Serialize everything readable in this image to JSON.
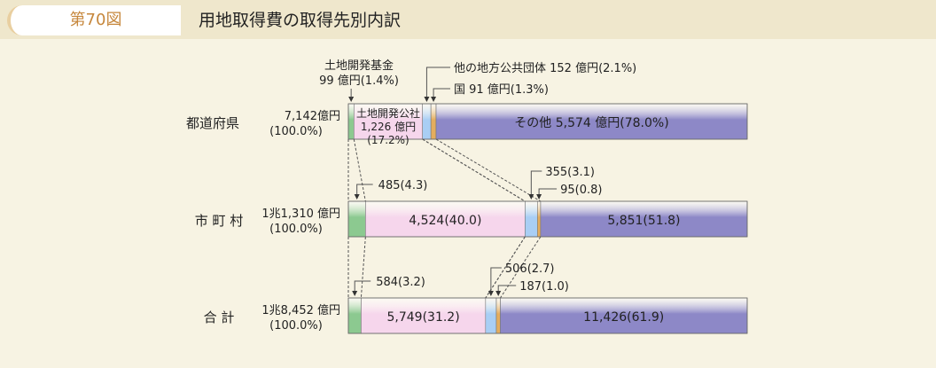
{
  "header": {
    "figure_number": "第70図",
    "title": "用地取得費の取得先別内訳"
  },
  "chart_data": {
    "type": "bar",
    "orientation": "horizontal",
    "stacked": true,
    "normalized_percent": true,
    "title": "用地取得費の取得先別内訳",
    "segment_colors": {
      "land_fund": "#8cc990",
      "land_corp": "#f6d6ec",
      "local_gov": "#a9cef4",
      "national": "#e4ad5e",
      "other": "#8d88c7"
    },
    "rows": [
      {
        "name": "都道府県",
        "total": "7,142億円",
        "total_pct": "(100.0%)",
        "shares": [
          1.4,
          17.2,
          2.1,
          1.3,
          78.0
        ],
        "labels": {
          "land_fund": [
            "土地開発基金",
            "99 億円(1.4%)"
          ],
          "land_corp": [
            "土地開発公社",
            "1,226 億円",
            "(17.2%)"
          ],
          "local_gov": "他の地方公共団体 152 億円(2.1%)",
          "national": "国 91 億円(1.3%)",
          "other": "その他 5,574 億円(78.0%)"
        }
      },
      {
        "name": "市 町 村",
        "total": "1兆1,310 億円",
        "total_pct": "(100.0%)",
        "shares": [
          4.3,
          40.0,
          3.1,
          0.8,
          51.8
        ],
        "labels": {
          "land_fund": "485(4.3)",
          "land_corp": "4,524(40.0)",
          "local_gov": "355(3.1)",
          "national": "95(0.8)",
          "other": "5,851(51.8)"
        }
      },
      {
        "name": "合 計",
        "total": "1兆8,452 億円",
        "total_pct": "(100.0%)",
        "shares": [
          3.2,
          31.2,
          2.7,
          1.0,
          61.9
        ],
        "labels": {
          "land_fund": "584(3.2)",
          "land_corp": "5,749(31.2)",
          "local_gov": "506(2.7)",
          "national": "187(1.0)",
          "other": "11,426(61.9)"
        }
      }
    ]
  }
}
